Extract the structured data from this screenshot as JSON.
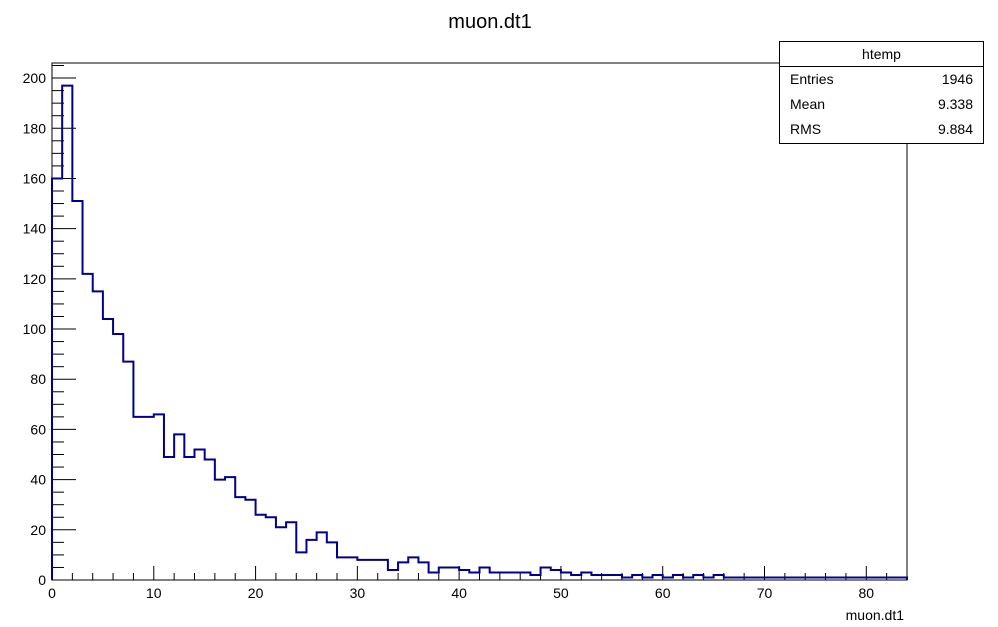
{
  "chart_data": {
    "type": "bar",
    "subtype": "histogram-step",
    "title": "muon.dt1",
    "xlabel": "muon.dt1",
    "ylabel": "",
    "xlim": [
      0,
      84
    ],
    "ylim": [
      0,
      206
    ],
    "bin_width": 1,
    "x_ticks": [
      0,
      10,
      20,
      30,
      40,
      50,
      60,
      70,
      80
    ],
    "y_ticks": [
      0,
      20,
      40,
      60,
      80,
      100,
      120,
      140,
      160,
      180,
      200
    ],
    "bin_edges_start": 0,
    "values": [
      160,
      197,
      151,
      122,
      115,
      104,
      98,
      87,
      65,
      65,
      66,
      49,
      58,
      49,
      52,
      48,
      40,
      41,
      33,
      32,
      26,
      25,
      21,
      23,
      11,
      16,
      19,
      15,
      9,
      9,
      8,
      8,
      8,
      4,
      7,
      9,
      7,
      3,
      5,
      5,
      4,
      3,
      5,
      3,
      3,
      3,
      3,
      2,
      5,
      4,
      3,
      2,
      3,
      2,
      2,
      2,
      1,
      2,
      1,
      2,
      1,
      2,
      1,
      2,
      1,
      2,
      1,
      1,
      1,
      1,
      1,
      1,
      1,
      1,
      1,
      1,
      1,
      1,
      1,
      1,
      1,
      1,
      1,
      1
    ],
    "series": [
      {
        "name": "htemp",
        "color": "#00008b"
      }
    ],
    "grid": false,
    "legend": "top-right"
  },
  "stats_box": {
    "title": "htemp",
    "rows": [
      {
        "label": "Entries",
        "value": "1946"
      },
      {
        "label": "Mean",
        "value": "9.338"
      },
      {
        "label": "RMS",
        "value": "9.884"
      }
    ]
  }
}
